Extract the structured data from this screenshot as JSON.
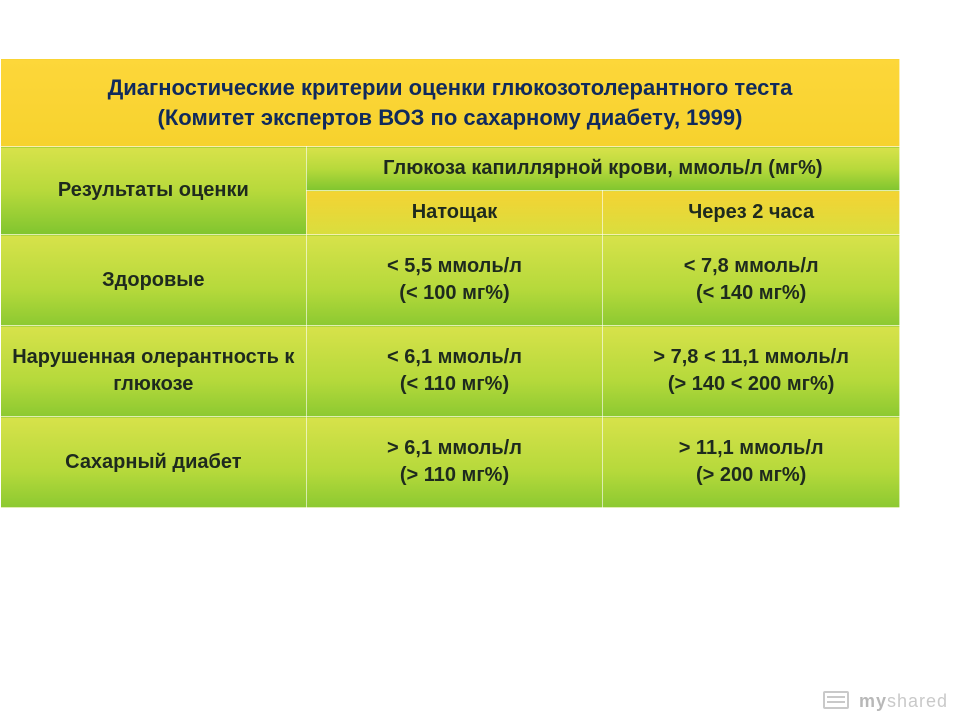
{
  "table": {
    "type": "table",
    "title_line1": "Диагностические критерии оценки глюкозотолерантного теста",
    "title_line2": "(Комитет экспертов ВОЗ по сахарному диабету, 1999)",
    "header_left": "Результаты оценки",
    "header_span": "Глюкоза капиллярной крови, ммоль/л (мг%)",
    "sub_col1": "Натощак",
    "sub_col2": "Через 2 часа",
    "rows": [
      {
        "label": "Здоровые",
        "fasting_mmol": "< 5,5 ммоль/л",
        "fasting_mg": "(< 100 мг%)",
        "after_mmol": "< 7,8 ммоль/л",
        "after_mg": "(< 140 мг%)"
      },
      {
        "label": "Нарушенная олерантность к глюкозе",
        "fasting_mmol": "< 6,1 ммоль/л",
        "fasting_mg": "(< 110 мг%)",
        "after_mmol": "> 7,8 < 11,1 ммоль/л",
        "after_mg": "(> 140 < 200 мг%)"
      },
      {
        "label": "Сахарный диабет",
        "fasting_mmol": "> 6,1 ммоль/л",
        "fasting_mg": "(> 110 мг%)",
        "after_mmol": "> 11,1 ммоль/л",
        "after_mg": "(> 200 мг%)"
      }
    ],
    "colors": {
      "title_bg_top": "#fdd73a",
      "title_bg_bottom": "#f6d22d",
      "title_text": "#102a5c",
      "row_bg_top": "#d7e24a",
      "row_bg_mid": "#b5d93b",
      "row_bg_bottom": "#8cc931",
      "sub_bg_top": "#f4d333",
      "sub_bg_bottom": "#d9de3e",
      "border": "#ffffff",
      "body_text": "#1e2a1e"
    },
    "font_sizes": {
      "title": 22,
      "header": 20,
      "cell": 20
    },
    "column_widths_pct": [
      34,
      33,
      33
    ]
  },
  "watermark": {
    "my": "my",
    "shared": "shared"
  }
}
